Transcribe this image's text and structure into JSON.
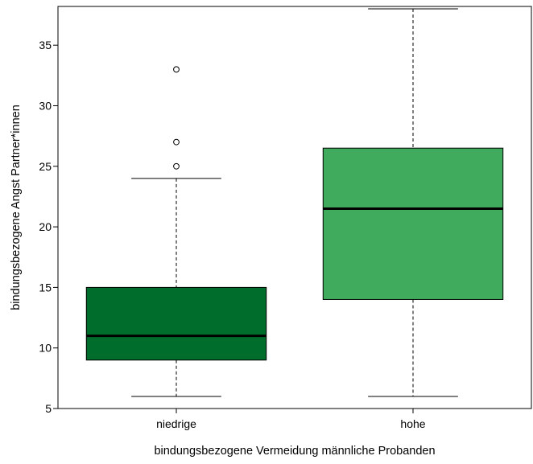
{
  "chart_data": {
    "type": "boxplot",
    "title": "",
    "xlabel": "bindungsbezogene Vermeidung männliche Probanden",
    "ylabel": "bindungsbezogene Angst Partner*innen",
    "ylim": [
      5,
      38.2
    ],
    "yticks": [
      5,
      10,
      15,
      20,
      25,
      30,
      35
    ],
    "categories": [
      "niedrige",
      "hohe"
    ],
    "boxes": [
      {
        "category": "niedrige",
        "whisker_low": 6,
        "q1": 9,
        "median": 11,
        "q3": 15,
        "whisker_high": 24,
        "outliers": [
          25,
          27,
          33
        ],
        "color": "#006d2c"
      },
      {
        "category": "hohe",
        "whisker_low": 6,
        "q1": 14,
        "median": 21.5,
        "q3": 26.5,
        "whisker_high": 38,
        "outliers": [],
        "color": "#41ab5d"
      }
    ],
    "grid": false
  }
}
